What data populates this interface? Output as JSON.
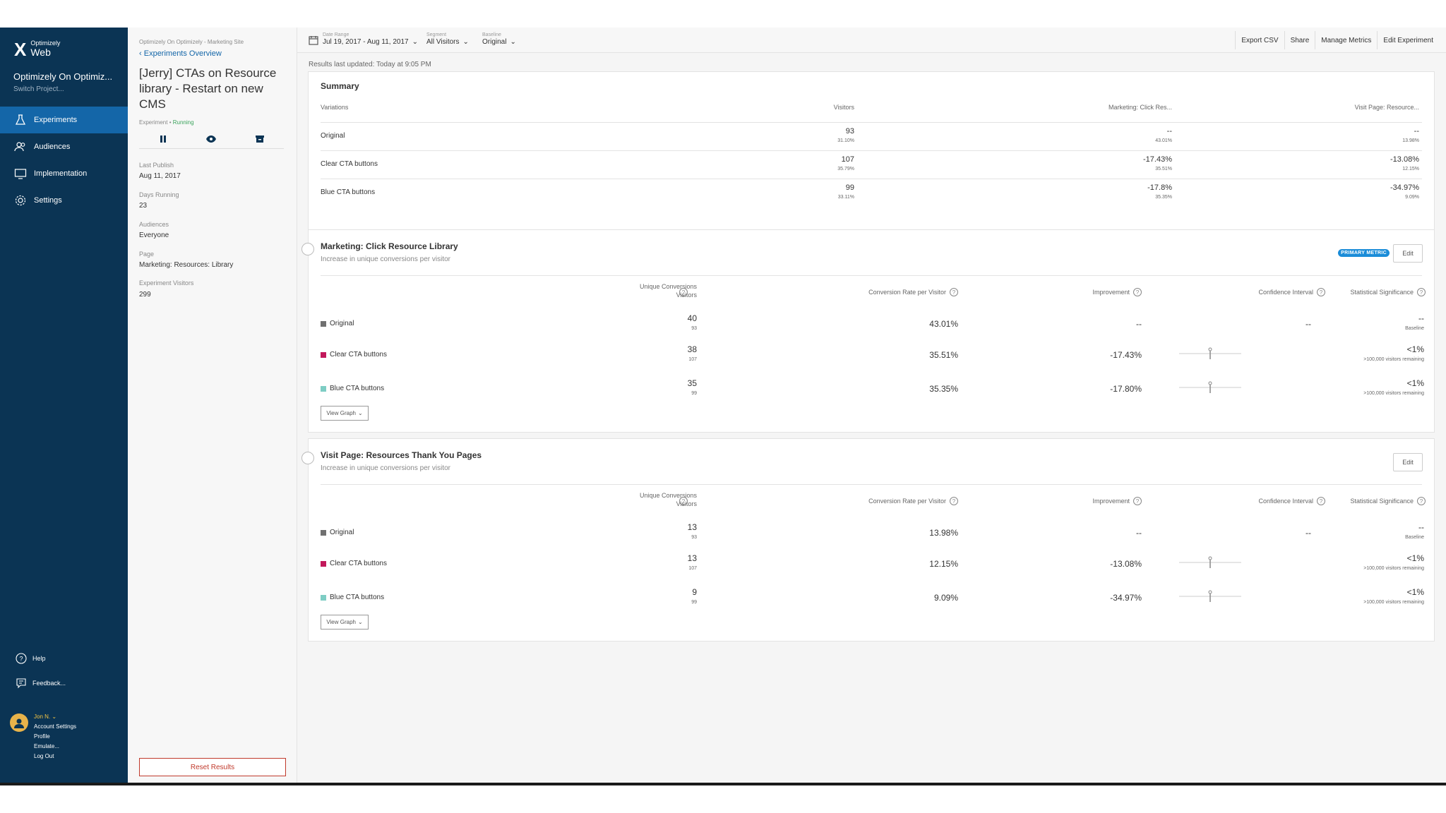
{
  "nav": {
    "logo_small": "Optimizely",
    "logo_big": "Web",
    "project": "Optimizely On Optimiz...",
    "switch": "Switch Project...",
    "items": [
      {
        "label": "Experiments",
        "icon": "flask-icon",
        "active": true
      },
      {
        "label": "Audiences",
        "icon": "users-icon",
        "active": false
      },
      {
        "label": "Implementation",
        "icon": "monitor-icon",
        "active": false
      },
      {
        "label": "Settings",
        "icon": "gear-icon",
        "active": false
      }
    ],
    "help": "Help",
    "feedback": "Feedback...",
    "user": {
      "name": "Jon N.",
      "links": [
        "Account Settings",
        "Profile",
        "Emulate...",
        "Log Out"
      ]
    }
  },
  "experiment": {
    "breadcrumb": "Optimizely On Optimizely - Marketing Site",
    "back": "Experiments Overview",
    "title": "[Jerry] CTAs on Resource library - Restart on new CMS",
    "type": "Experiment",
    "status": "Running",
    "meta": [
      {
        "label": "Last Publish",
        "value": "Aug 11, 2017"
      },
      {
        "label": "Days Running",
        "value": "23"
      },
      {
        "label": "Audiences",
        "value": "Everyone"
      },
      {
        "label": "Page",
        "value": "Marketing: Resources: Library"
      },
      {
        "label": "Experiment Visitors",
        "value": "299"
      }
    ],
    "reset": "Reset Results"
  },
  "toolbar": {
    "date_label": "Date Range",
    "date_value": "Jul 19, 2017 - Aug 11, 2017",
    "segment_label": "Segment",
    "segment_value": "All Visitors",
    "baseline_label": "Baseline",
    "baseline_value": "Original",
    "links": [
      "Export CSV",
      "Share",
      "Manage Metrics",
      "Edit Experiment"
    ]
  },
  "updated": "Results last updated: Today at 9:05 PM",
  "summary": {
    "title": "Summary",
    "headers": [
      "Variations",
      "Visitors",
      "Marketing: Click Res...",
      "Visit Page: Resource..."
    ],
    "rows": [
      {
        "name": "Original",
        "visitors": "93",
        "visitors_pct": "31.10%",
        "m1": "--",
        "m1_sub": "43.01%",
        "m2": "--",
        "m2_sub": "13.98%"
      },
      {
        "name": "Clear CTA buttons",
        "visitors": "107",
        "visitors_pct": "35.79%",
        "m1": "-17.43%",
        "m1_sub": "35.51%",
        "m2": "-13.08%",
        "m2_sub": "12.15%"
      },
      {
        "name": "Blue CTA buttons",
        "visitors": "99",
        "visitors_pct": "33.11%",
        "m1": "-17.8%",
        "m1_sub": "35.35%",
        "m2": "-34.97%",
        "m2_sub": "9.09%"
      }
    ]
  },
  "colors": {
    "original": "#707070",
    "clear": "#c2185b",
    "blue": "#7ecdc4",
    "nav": "#0b3454",
    "accent": "#1466a8"
  },
  "metrics": [
    {
      "title": "Marketing: Click Resource Library",
      "subtitle": "Increase in unique conversions per visitor",
      "badge": "PRIMARY METRIC",
      "edit": "Edit",
      "headers": {
        "conv": "Unique Conversions",
        "visitors": "Visitors",
        "rate": "Conversion Rate per Visitor",
        "improvement": "Improvement",
        "ci": "Confidence Interval",
        "sig": "Statistical Significance"
      },
      "rows": [
        {
          "name": "Original",
          "conv": "40",
          "visitors": "93",
          "rate": "43.01%",
          "improvement": "--",
          "ci": "--",
          "sig": "--",
          "sig_sub": "Baseline"
        },
        {
          "name": "Clear CTA buttons",
          "conv": "38",
          "visitors": "107",
          "rate": "35.51%",
          "improvement": "-17.43%",
          "ci": "",
          "sig": "<1%",
          "sig_sub": ">100,000 visitors remaining"
        },
        {
          "name": "Blue CTA buttons",
          "conv": "35",
          "visitors": "99",
          "rate": "35.35%",
          "improvement": "-17.80%",
          "ci": "",
          "sig": "<1%",
          "sig_sub": ">100,000 visitors remaining"
        }
      ],
      "view_graph": "View Graph"
    },
    {
      "title": "Visit Page: Resources Thank You Pages",
      "subtitle": "Increase in unique conversions per visitor",
      "badge": "",
      "edit": "Edit",
      "headers": {
        "conv": "Unique Conversions",
        "visitors": "Visitors",
        "rate": "Conversion Rate per Visitor",
        "improvement": "Improvement",
        "ci": "Confidence Interval",
        "sig": "Statistical Significance"
      },
      "rows": [
        {
          "name": "Original",
          "conv": "13",
          "visitors": "93",
          "rate": "13.98%",
          "improvement": "--",
          "ci": "--",
          "sig": "--",
          "sig_sub": "Baseline"
        },
        {
          "name": "Clear CTA buttons",
          "conv": "13",
          "visitors": "107",
          "rate": "12.15%",
          "improvement": "-13.08%",
          "ci": "",
          "sig": "<1%",
          "sig_sub": ">100,000 visitors remaining"
        },
        {
          "name": "Blue CTA buttons",
          "conv": "9",
          "visitors": "99",
          "rate": "9.09%",
          "improvement": "-34.97%",
          "ci": "",
          "sig": "<1%",
          "sig_sub": ">100,000 visitors remaining"
        }
      ],
      "view_graph": "View Graph"
    }
  ]
}
